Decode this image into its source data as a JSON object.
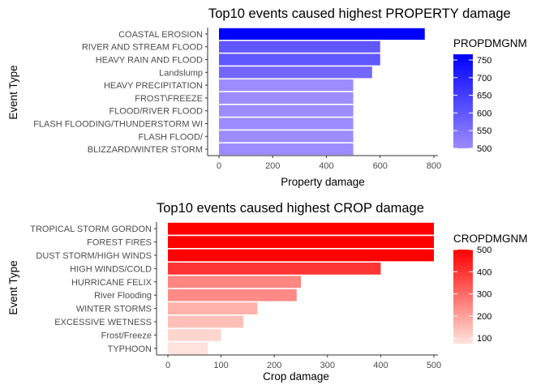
{
  "chart_data": [
    {
      "type": "bar",
      "orientation": "horizontal",
      "title": "Top10 events caused highest PROPERTY damage",
      "xlabel": "Property damage",
      "ylabel": "Event Type",
      "xlim": [
        0,
        800
      ],
      "xticks": [
        0,
        200,
        400,
        600,
        800
      ],
      "categories": [
        "BLIZZARD/WINTER STORM",
        "FLASH FLOOD/",
        "FLASH FLOODING/THUNDERSTORM WI",
        "FLOOD/RIVER FLOOD",
        "FROST\\FREEZE",
        "HEAVY PRECIPITATION",
        "Landslump",
        "HEAVY RAIN AND FLOOD",
        "RIVER AND STREAM FLOOD",
        "COASTAL EROSION"
      ],
      "values": [
        500,
        500,
        500,
        500,
        500,
        500,
        570,
        600,
        600,
        766
      ],
      "legend": {
        "title": "PROPDMGNM",
        "ticks": [
          500,
          550,
          600,
          650,
          700,
          750
        ],
        "range": [
          500,
          766
        ],
        "low_color": "#9c8cff",
        "high_color": "#0000ff"
      },
      "grid": false,
      "legend_position": "right"
    },
    {
      "type": "bar",
      "orientation": "horizontal",
      "title": "Top10 events caused highest CROP damage",
      "xlabel": "Crop damage",
      "ylabel": "Event Type",
      "xlim": [
        0,
        500
      ],
      "xticks": [
        0,
        100,
        200,
        300,
        400,
        500
      ],
      "categories": [
        "TYPHOON",
        "Frost/Freeze",
        "EXCESSIVE WETNESS",
        "WINTER STORMS",
        "River Flooding",
        "HURRICANE FELIX",
        "HIGH WINDS/COLD",
        "DUST STORM/HIGH WINDS",
        "FOREST FIRES",
        "TROPICAL STORM GORDON"
      ],
      "values": [
        75,
        100,
        142,
        168,
        242,
        250,
        400,
        500,
        500,
        500
      ],
      "legend": {
        "title": "CROPDMGNM",
        "ticks": [
          100,
          200,
          300,
          400,
          500
        ],
        "range": [
          75,
          500
        ],
        "low_color": "#ffe3dc",
        "high_color": "#ff0000"
      },
      "grid": false,
      "legend_position": "right"
    }
  ]
}
